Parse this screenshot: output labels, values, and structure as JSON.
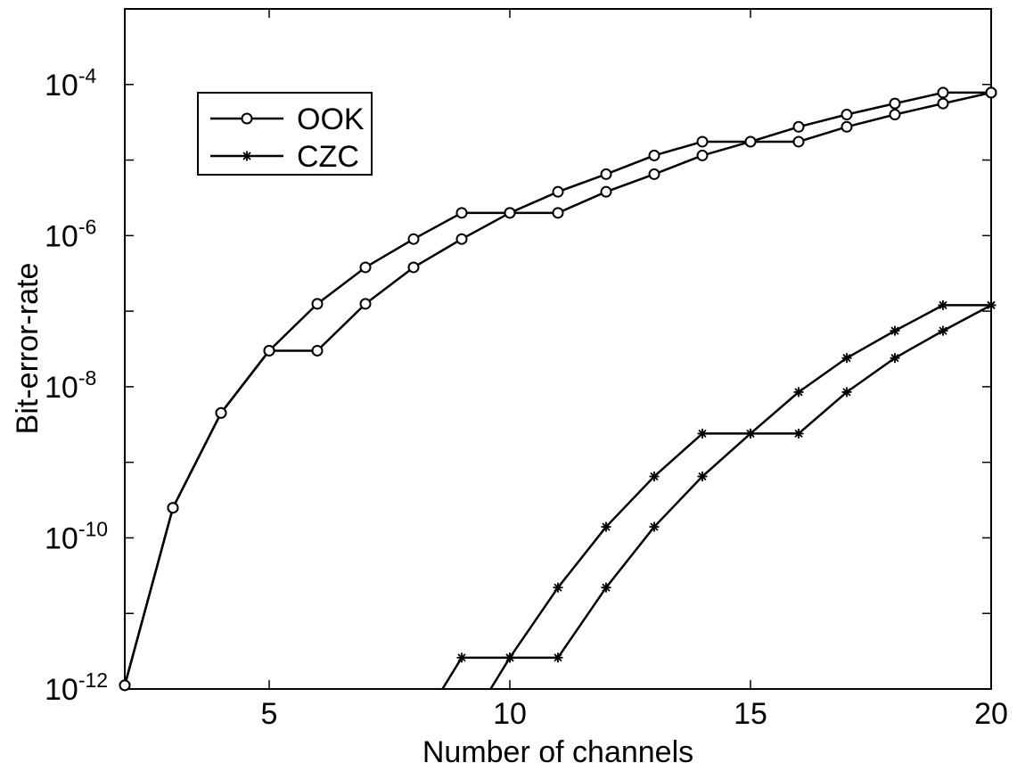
{
  "chart_data": {
    "type": "line",
    "title": "",
    "xlabel": "Number of channels",
    "ylabel": "Bit-error-rate",
    "xlim": [
      2,
      20
    ],
    "ylim": [
      1e-12,
      0.001
    ],
    "yscale": "log",
    "xticks": [
      5,
      10,
      15,
      20
    ],
    "xtick_labels": [
      "5",
      "10",
      "15",
      "20"
    ],
    "yticks": [
      {
        "base": "10",
        "exp": "-12",
        "value": 1e-12
      },
      {
        "base": "10",
        "exp": "-10",
        "value": 1e-10
      },
      {
        "base": "10",
        "exp": "-8",
        "value": 1e-08
      },
      {
        "base": "10",
        "exp": "-6",
        "value": 1e-06
      },
      {
        "base": "10",
        "exp": "-4",
        "value": 0.0001
      }
    ],
    "legend_position": "top-left",
    "series": [
      {
        "name": "OOK",
        "marker": "circle",
        "lines": [
          {
            "x": [
              2,
              3,
              4,
              5,
              6,
              7,
              8,
              9,
              10,
              11,
              12,
              13,
              14,
              15,
              16,
              17,
              18,
              19,
              20
            ],
            "y": [
              1.12e-12,
              2.5e-10,
              4.5e-09,
              3e-08,
              1.25e-07,
              3.8e-07,
              9e-07,
              2e-06,
              2e-06,
              3.8e-06,
              6.5e-06,
              1.15e-05,
              1.75e-05,
              1.75e-05,
              2.75e-05,
              4e-05,
              5.6e-05,
              7.8e-05,
              7.8e-05
            ]
          },
          {
            "x": [
              2,
              3,
              4,
              5,
              6,
              7,
              8,
              9,
              10,
              11,
              12,
              13,
              14,
              15,
              16,
              17,
              18,
              19,
              20
            ],
            "y": [
              1.12e-12,
              2.5e-10,
              4.5e-09,
              3e-08,
              3e-08,
              1.25e-07,
              3.8e-07,
              9e-07,
              2e-06,
              2e-06,
              3.8e-06,
              6.5e-06,
              1.15e-05,
              1.75e-05,
              1.75e-05,
              2.75e-05,
              4e-05,
              5.6e-05,
              7.8e-05
            ]
          }
        ]
      },
      {
        "name": "CZC",
        "marker": "asterisk",
        "lines": [
          {
            "x": [
              8.6,
              9,
              10,
              11,
              12,
              13,
              14,
              15,
              16,
              17,
              18,
              19,
              20
            ],
            "y": [
              1e-12,
              2.6e-12,
              2.6e-12,
              2.2e-11,
              1.4e-10,
              6.5e-10,
              2.4e-09,
              2.4e-09,
              8.5e-09,
              2.4e-08,
              5.5e-08,
              1.2e-07,
              1.2e-07
            ]
          },
          {
            "x": [
              9.6,
              10,
              11,
              12,
              13,
              14,
              15,
              16,
              17,
              18,
              19,
              20
            ],
            "y": [
              1e-12,
              2.6e-12,
              2.6e-12,
              2.2e-11,
              1.4e-10,
              6.5e-10,
              2.4e-09,
              2.4e-09,
              8.5e-09,
              2.4e-08,
              5.5e-08,
              1.2e-07
            ]
          }
        ]
      }
    ]
  }
}
